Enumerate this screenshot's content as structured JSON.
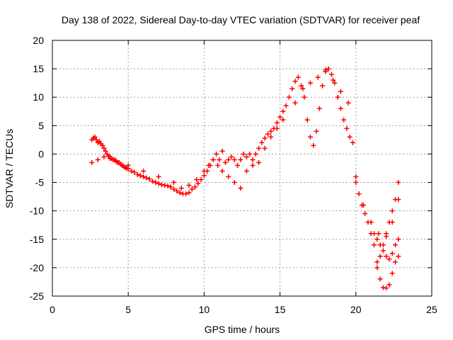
{
  "chart_data": {
    "type": "scatter",
    "title": "Day 138 of 2022, Sidereal Day-to-day VTEC variation (SDTVAR) for receiver peaf",
    "xlabel": "GPS time / hours",
    "ylabel": "SDTVAR / TECUs",
    "xlim": [
      0,
      25
    ],
    "ylim": [
      -25,
      20
    ],
    "xticks": [
      "0",
      "5",
      "10",
      "15",
      "20",
      "25"
    ],
    "yticks": [
      "-25",
      "-20",
      "-15",
      "-10",
      "-5",
      "0",
      "5",
      "10",
      "15",
      "20"
    ],
    "grid": true,
    "marker": "+",
    "series_color": "#ff0000",
    "series": [
      {
        "x": [
          2.6,
          2.7,
          2.8,
          2.9,
          3.0,
          3.1,
          3.2,
          3.3,
          3.4,
          3.5,
          3.6,
          3.7,
          3.8,
          3.9,
          4.0,
          4.1,
          4.2,
          4.3,
          4.4,
          4.5,
          4.6,
          4.7,
          4.8,
          4.9,
          5.0,
          5.2,
          5.4,
          5.6,
          5.8,
          6.0,
          6.2,
          6.4,
          6.6,
          6.8,
          7.0,
          7.2,
          7.4,
          7.6,
          7.8,
          8.0,
          8.2,
          8.4,
          8.6,
          8.8,
          9.0,
          9.2,
          9.4,
          9.6,
          9.8,
          10.0,
          10.2,
          10.4,
          10.6,
          10.8,
          11.0,
          11.2,
          11.4,
          11.6,
          11.8,
          12.0,
          12.2,
          12.4,
          12.6,
          12.8,
          13.0,
          13.2,
          13.4,
          13.6,
          13.8,
          14.0,
          14.2,
          14.4,
          14.6,
          14.8,
          15.0,
          15.2,
          15.4,
          15.6,
          15.8,
          16.0,
          16.2,
          16.4,
          16.6,
          16.8,
          17.0,
          17.2,
          17.4,
          17.6,
          17.8,
          18.0,
          18.2,
          18.4,
          18.6,
          18.8,
          19.0,
          19.2,
          19.4,
          19.6,
          19.8,
          20.0,
          20.2,
          20.4,
          20.6,
          20.8,
          21.0,
          21.2,
          21.4,
          21.6,
          21.8,
          22.0,
          22.2,
          22.4,
          22.6,
          22.8
        ],
        "y": [
          2.5,
          2.8,
          3.0,
          2.5,
          2.0,
          2.2,
          1.8,
          1.5,
          1.0,
          0.5,
          0.0,
          -0.3,
          -0.5,
          -0.8,
          -1.0,
          -1.0,
          -1.3,
          -1.5,
          -1.5,
          -1.8,
          -2.0,
          -2.2,
          -2.4,
          -2.5,
          -2.6,
          -3.0,
          -3.2,
          -3.6,
          -3.8,
          -4.0,
          -4.2,
          -4.4,
          -4.8,
          -5.0,
          -5.2,
          -5.4,
          -5.5,
          -5.6,
          -5.8,
          -6.2,
          -6.5,
          -6.8,
          -7.0,
          -7.0,
          -6.8,
          -6.2,
          -5.8,
          -5.2,
          -4.5,
          -3.8,
          -3.0,
          -2.0,
          -1.0,
          0.0,
          -1.0,
          0.5,
          -1.5,
          -1.0,
          -0.5,
          -1.0,
          -2.0,
          -1.0,
          0.0,
          -0.5,
          0.0,
          -1.0,
          0.0,
          1.0,
          2.0,
          2.8,
          3.5,
          4.0,
          4.5,
          5.5,
          6.5,
          7.5,
          8.5,
          10.0,
          11.5,
          12.8,
          13.5,
          12.0,
          10.0,
          6.0,
          3.0,
          1.5,
          4.0,
          8.0,
          12.0,
          14.8,
          15.0,
          14.0,
          12.5,
          10.0,
          8.0,
          6.0,
          4.5,
          3.0,
          2.0,
          -4.0,
          -7.0,
          -9.0,
          -10.5,
          -12.0,
          -14.0,
          -16.0,
          -19.0,
          -22.0,
          -23.5,
          -23.6,
          -23.0,
          -21.0,
          -19.0,
          -18.0
        ]
      },
      {
        "x": [
          2.6,
          3.0,
          3.4,
          3.8,
          4.2,
          5.0,
          6.0,
          7.0,
          8.0,
          8.5,
          9.0,
          9.5,
          10.0,
          10.3,
          10.6,
          10.9,
          11.2,
          11.6,
          12.0,
          12.4,
          12.8,
          13.2,
          13.6,
          14.0,
          14.4,
          14.8,
          15.2,
          16.0,
          16.5,
          17.0,
          17.5,
          18.0,
          18.5,
          19.0,
          19.5,
          20.0,
          20.5,
          21.0,
          21.5,
          22.0,
          22.4,
          22.8
        ],
        "y": [
          -1.5,
          -1.0,
          -0.5,
          -0.8,
          -1.2,
          -2.0,
          -3.0,
          -4.0,
          -5.0,
          -6.0,
          -5.5,
          -4.5,
          -3.0,
          -2.0,
          -1.0,
          -2.0,
          -3.0,
          -4.0,
          -5.0,
          -6.0,
          -3.0,
          -2.0,
          -1.5,
          1.0,
          3.0,
          4.5,
          6.0,
          9.0,
          11.5,
          12.5,
          13.5,
          14.5,
          13.0,
          11.0,
          9.0,
          -5.0,
          -9.0,
          -12.0,
          -14.0,
          -14.5,
          -12.0,
          -8.0
        ]
      },
      {
        "x": [
          21.4,
          21.6,
          21.8,
          22.0,
          22.2,
          22.4,
          22.6,
          22.8
        ],
        "y": [
          -20.0,
          -18.0,
          -16.0,
          -14.0,
          -12.0,
          -10.0,
          -8.0,
          -5.0
        ]
      },
      {
        "x": [
          21.2,
          21.4,
          21.6,
          21.8,
          22.0,
          22.2,
          22.4,
          22.6,
          22.8
        ],
        "y": [
          -14.0,
          -15.0,
          -16.0,
          -17.0,
          -18.0,
          -18.5,
          -17.5,
          -16.0,
          -15.0
        ]
      }
    ]
  }
}
